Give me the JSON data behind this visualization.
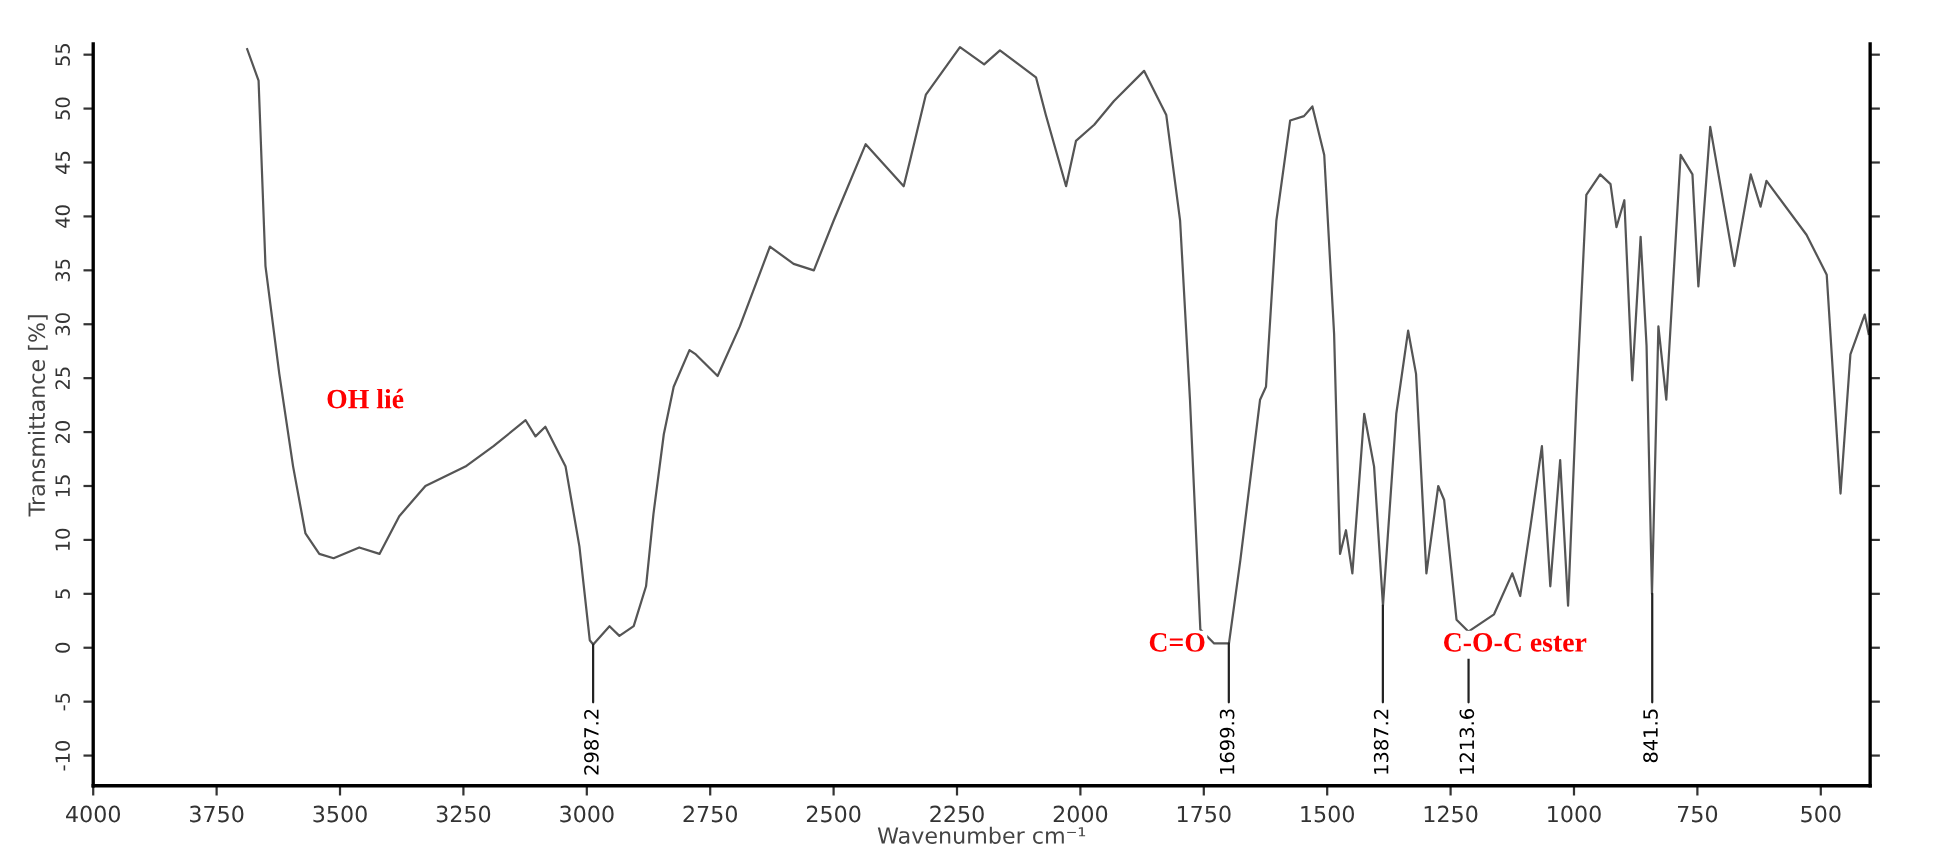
{
  "chart_data": {
    "type": "line",
    "xlabel": "Wavenumber cm⁻¹",
    "ylabel": "Transmittance [%]",
    "xlim": [
      4000,
      400
    ],
    "ylim": [
      -12.8,
      56
    ],
    "xticks": [
      4000,
      3750,
      3500,
      3250,
      3000,
      2750,
      2500,
      2250,
      2000,
      1750,
      1500,
      1250,
      1000,
      750,
      500
    ],
    "yticks": [
      -10,
      -5,
      0,
      5,
      10,
      15,
      20,
      25,
      30,
      35,
      40,
      45,
      50,
      55
    ],
    "grid": false,
    "legend": false,
    "marker": "none",
    "line_style": "solid",
    "series": [
      {
        "color": "#555555",
        "x": [
          3688,
          3665,
          3651,
          3623,
          3595,
          3570,
          3542,
          3513,
          3461,
          3420,
          3380,
          3327,
          3246,
          3189,
          3124,
          3104,
          3084,
          3043,
          3015,
          2994,
          2987,
          2954,
          2934,
          2905,
          2880,
          2865,
          2844,
          2824,
          2792,
          2779,
          2735,
          2690,
          2629,
          2581,
          2540,
          2500,
          2435,
          2358,
          2345,
          2313,
          2244,
          2195,
          2163,
          2090,
          2070,
          2029,
          2009,
          1972,
          1932,
          1871,
          1826,
          1798,
          1778,
          1757,
          1729,
          1699,
          1676,
          1636,
          1624,
          1603,
          1575,
          1547,
          1530,
          1506,
          1486,
          1474,
          1462,
          1449,
          1425,
          1405,
          1387,
          1360,
          1336,
          1320,
          1299,
          1275,
          1263,
          1238,
          1214,
          1162,
          1125,
          1109,
          1088,
          1065,
          1048,
          1028,
          1012,
          995,
          975,
          947,
          926,
          914,
          898,
          882,
          865,
          853,
          842,
          829,
          813,
          784,
          760,
          748,
          724,
          675,
          642,
          622,
          610,
          529,
          488,
          460,
          440,
          411,
          403
        ],
        "values": [
          55.5,
          52.6,
          35.4,
          25.4,
          16.8,
          10.6,
          8.7,
          8.3,
          9.3,
          8.7,
          12.2,
          15,
          16.8,
          18.7,
          21.1,
          19.6,
          20.5,
          16.8,
          9.4,
          0.7,
          0.3,
          2.0,
          1.1,
          2.0,
          5.7,
          12.4,
          19.8,
          24.2,
          27.6,
          27.2,
          25.2,
          29.8,
          37.2,
          35.6,
          35,
          39.6,
          46.7,
          42.8,
          45.2,
          51.3,
          55.7,
          54.1,
          55.4,
          52.9,
          49.4,
          42.8,
          47,
          48.5,
          50.7,
          53.5,
          49.4,
          39.6,
          23,
          1.7,
          0.4,
          0.4,
          8.1,
          23,
          24.2,
          39.6,
          48.9,
          49.3,
          50.2,
          45.7,
          29.1,
          8.7,
          10.9,
          6.9,
          21.7,
          16.8,
          3.9,
          21.7,
          29.4,
          25.4,
          6.9,
          15,
          13.7,
          2.6,
          1.5,
          3.1,
          6.9,
          4.8,
          11.3,
          18.7,
          5.7,
          17.4,
          3.9,
          23,
          42,
          43.9,
          43,
          39,
          41.5,
          24.8,
          38.1,
          28,
          5,
          29.8,
          23,
          45.7,
          43.9,
          33.5,
          48.3,
          35.4,
          43.9,
          40.9,
          43.3,
          38.3,
          34.6,
          14.3,
          27.2,
          30.9,
          29.1
        ]
      }
    ],
    "annotations": [
      {
        "text": "2987.2",
        "x": 2987.2,
        "y": 0.3
      },
      {
        "text": "1699.3",
        "x": 1699.3,
        "y": 0.4
      },
      {
        "text": "1387.2",
        "x": 1387.2,
        "y": 3.9
      },
      {
        "text": "1213.6",
        "x": 1213.6,
        "y": 1.5
      },
      {
        "text": "841.5",
        "x": 841.5,
        "y": 5
      },
      "OH lié",
      "C=O",
      "C-O-C ester"
    ]
  }
}
